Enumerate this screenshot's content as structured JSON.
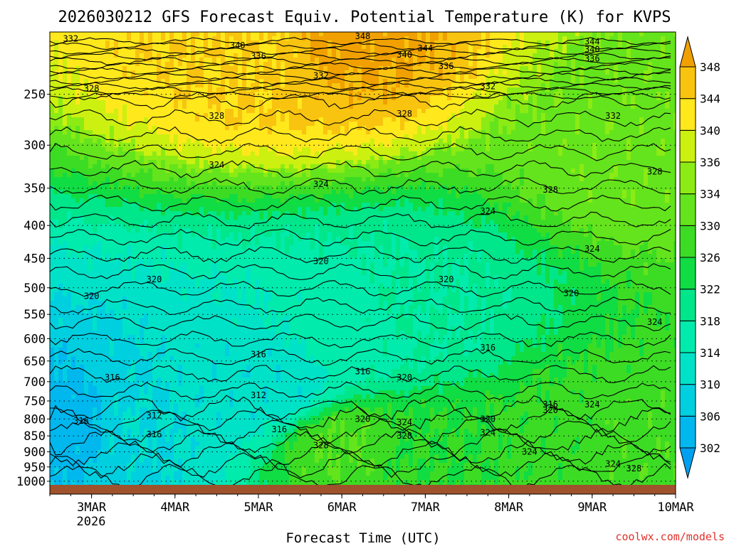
{
  "chart_data": {
    "type": "heatmap",
    "title": "2026030212 GFS Forecast Equiv. Potential Temperature (K) for KVPS",
    "xlabel": "Forecast Time (UTC)",
    "ylabel": "",
    "x_ticks": [
      "3MAR",
      "4MAR",
      "5MAR",
      "6MAR",
      "7MAR",
      "8MAR",
      "9MAR",
      "10MAR"
    ],
    "x_year_label": "2026",
    "x_range": [
      "2026-03-02T12",
      "2026-03-10T00"
    ],
    "y_scale": "log-pressure",
    "y_ticks": [
      250,
      300,
      350,
      400,
      450,
      500,
      550,
      600,
      650,
      700,
      750,
      800,
      850,
      900,
      950,
      1000
    ],
    "y_range": [
      1013,
      200
    ],
    "colorbar": {
      "labels": [
        302,
        306,
        310,
        314,
        318,
        322,
        326,
        330,
        334,
        336,
        340,
        344,
        348
      ],
      "colors": [
        "#00a0f0",
        "#00b7ee",
        "#00cfe0",
        "#00e2c8",
        "#00ebac",
        "#00e68a",
        "#10dc44",
        "#3cdc24",
        "#64e41c",
        "#8ceb14",
        "#ccf010",
        "#ffe81c",
        "#f8c410",
        "#f0a000"
      ],
      "units": "K",
      "contour_interval": 4
    },
    "fill_samples": [
      {
        "time": "2026-03-02T18",
        "pressure": 820,
        "value": 304
      },
      {
        "time": "2026-03-03T12",
        "pressure": 820,
        "value": 310
      },
      {
        "time": "2026-03-04T18",
        "pressure": 720,
        "value": 311
      },
      {
        "time": "2026-03-05T06",
        "pressure": 700,
        "value": 311
      },
      {
        "time": "2026-03-06T00",
        "pressure": 600,
        "value": 316
      },
      {
        "time": "2026-03-07T00",
        "pressure": 550,
        "value": 318
      },
      {
        "time": "2026-03-06T00",
        "pressure": 880,
        "value": 330
      },
      {
        "time": "2026-03-07T00",
        "pressure": 900,
        "value": 326
      },
      {
        "time": "2026-03-08T12",
        "pressure": 880,
        "value": 327
      },
      {
        "time": "2026-03-09T12",
        "pressure": 900,
        "value": 329
      },
      {
        "time": "2026-03-09T12",
        "pressure": 300,
        "value": 333
      },
      {
        "time": "2026-03-05T00",
        "pressure": 210,
        "value": 344
      },
      {
        "time": "2026-03-06T00",
        "pressure": 202,
        "value": 349
      }
    ],
    "contour_labels": [
      {
        "text": "332",
        "time": "2026-03-02T18",
        "pressure": 205
      },
      {
        "text": "340",
        "time": "2026-03-04T18",
        "pressure": 210
      },
      {
        "text": "336",
        "time": "2026-03-05T00",
        "pressure": 218
      },
      {
        "text": "348",
        "time": "2026-03-06T06",
        "pressure": 203
      },
      {
        "text": "344",
        "time": "2026-03-07T00",
        "pressure": 212
      },
      {
        "text": "340",
        "time": "2026-03-06T18",
        "pressure": 217
      },
      {
        "text": "336",
        "time": "2026-03-07T06",
        "pressure": 226
      },
      {
        "text": "332",
        "time": "2026-03-05T18",
        "pressure": 234
      },
      {
        "text": "332",
        "time": "2026-03-07T18",
        "pressure": 243
      },
      {
        "text": "344",
        "time": "2026-03-09T00",
        "pressure": 207
      },
      {
        "text": "340",
        "time": "2026-03-09T00",
        "pressure": 213
      },
      {
        "text": "336",
        "time": "2026-03-09T00",
        "pressure": 220
      },
      {
        "text": "328",
        "time": "2026-03-03T00",
        "pressure": 245
      },
      {
        "text": "328",
        "time": "2026-03-04T12",
        "pressure": 270
      },
      {
        "text": "328",
        "time": "2026-03-06T18",
        "pressure": 268
      },
      {
        "text": "332",
        "time": "2026-03-09T06",
        "pressure": 270
      },
      {
        "text": "324",
        "time": "2026-03-04T12",
        "pressure": 322
      },
      {
        "text": "324",
        "time": "2026-03-05T18",
        "pressure": 345
      },
      {
        "text": "328",
        "time": "2026-03-08T12",
        "pressure": 352
      },
      {
        "text": "328",
        "time": "2026-03-09T18",
        "pressure": 330
      },
      {
        "text": "324",
        "time": "2026-03-07T18",
        "pressure": 380
      },
      {
        "text": "324",
        "time": "2026-03-09T00",
        "pressure": 435
      },
      {
        "text": "320",
        "time": "2026-03-05T18",
        "pressure": 455
      },
      {
        "text": "320",
        "time": "2026-03-03T18",
        "pressure": 485
      },
      {
        "text": "320",
        "time": "2026-03-03T00",
        "pressure": 515
      },
      {
        "text": "320",
        "time": "2026-03-07T06",
        "pressure": 485
      },
      {
        "text": "320",
        "time": "2026-03-08T18",
        "pressure": 510
      },
      {
        "text": "324",
        "time": "2026-03-09T18",
        "pressure": 565
      },
      {
        "text": "316",
        "time": "2026-03-05T00",
        "pressure": 635
      },
      {
        "text": "316",
        "time": "2026-03-07T18",
        "pressure": 620
      },
      {
        "text": "316",
        "time": "2026-03-06T06",
        "pressure": 675
      },
      {
        "text": "320",
        "time": "2026-03-06T18",
        "pressure": 690
      },
      {
        "text": "316",
        "time": "2026-03-03T06",
        "pressure": 690
      },
      {
        "text": "312",
        "time": "2026-03-05T00",
        "pressure": 735
      },
      {
        "text": "316",
        "time": "2026-03-08T12",
        "pressure": 760
      },
      {
        "text": "320",
        "time": "2026-03-08T12",
        "pressure": 775
      },
      {
        "text": "324",
        "time": "2026-03-09T00",
        "pressure": 760
      },
      {
        "text": "312",
        "time": "2026-03-03T18",
        "pressure": 790
      },
      {
        "text": "316",
        "time": "2026-03-02T21",
        "pressure": 805
      },
      {
        "text": "316",
        "time": "2026-03-03T18",
        "pressure": 845
      },
      {
        "text": "316",
        "time": "2026-03-05T06",
        "pressure": 830
      },
      {
        "text": "320",
        "time": "2026-03-06T06",
        "pressure": 800
      },
      {
        "text": "324",
        "time": "2026-03-06T18",
        "pressure": 810
      },
      {
        "text": "328",
        "time": "2026-03-06T18",
        "pressure": 850
      },
      {
        "text": "328",
        "time": "2026-03-05T18",
        "pressure": 880
      },
      {
        "text": "320",
        "time": "2026-03-07T18",
        "pressure": 800
      },
      {
        "text": "324",
        "time": "2026-03-07T18",
        "pressure": 840
      },
      {
        "text": "324",
        "time": "2026-03-08T06",
        "pressure": 900
      },
      {
        "text": "324",
        "time": "2026-03-09T06",
        "pressure": 940
      },
      {
        "text": "328",
        "time": "2026-03-09T12",
        "pressure": 955
      }
    ]
  },
  "credit": "coolwx.com/models",
  "colors": {
    "ground": "#a0522d",
    "contour": "#000000"
  }
}
